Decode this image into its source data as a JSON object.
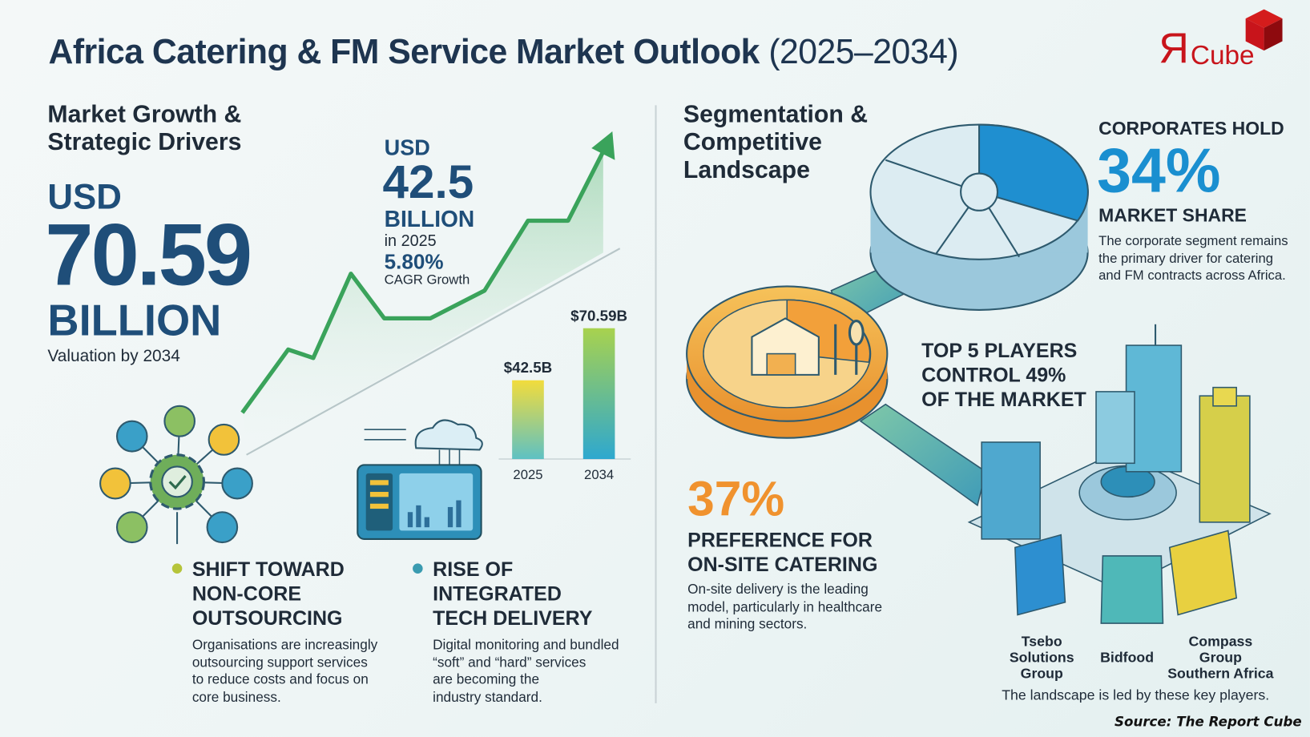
{
  "title": {
    "main": "Africa Catering & FM Service Market Outlook",
    "years": "(2025–2034)"
  },
  "logo": {
    "text_r": "Я",
    "text_cube": "Cube",
    "color": "#c8141b"
  },
  "left": {
    "heading": [
      "Market Growth &",
      "Strategic Drivers"
    ],
    "valuation": {
      "prefix": "USD",
      "value": "70.59",
      "unit": "BILLION",
      "caption": "Valuation by 2034"
    },
    "base": {
      "prefix": "USD",
      "value": "42.5",
      "unit": "BILLION",
      "year": "in 2025",
      "cagr": "5.80%",
      "cagr_label": "CAGR Growth"
    },
    "drivers": [
      {
        "title": [
          "SHIFT TOWARD",
          "NON-CORE",
          "OUTSOURCING"
        ],
        "desc": [
          "Organisations are increasingly",
          "outsourcing support services",
          "to reduce costs and focus on",
          "core business."
        ],
        "dot_color": "#b5c43a",
        "icon": "outsourcing-gear-icon"
      },
      {
        "title": [
          "RISE OF",
          "INTEGRATED",
          "TECH DELIVERY"
        ],
        "desc": [
          "Digital monitoring and bundled",
          "“soft” and “hard” services",
          "are becoming the",
          "industry standard."
        ],
        "dot_color": "#3a9bb0",
        "icon": "cloud-dashboard-icon"
      }
    ]
  },
  "chart_data": {
    "type": "bar",
    "categories": [
      "2025",
      "2034"
    ],
    "values": [
      42.5,
      70.59
    ],
    "data_labels": [
      "$42.5B",
      "$70.59B"
    ],
    "ylim": [
      0,
      80
    ]
  },
  "right": {
    "heading": [
      "Segmentation &",
      "Competitive",
      "Landscape"
    ],
    "corporates": {
      "lead": "CORPORATES HOLD",
      "value": "34%",
      "label": "MARKET SHARE",
      "desc": [
        "The corporate segment remains",
        "the primary driver for catering",
        "and FM contracts across Africa."
      ],
      "color": "#1a8fd0"
    },
    "top5": [
      "TOP 5 PLAYERS",
      "CONTROL 49%",
      "OF THE MARKET"
    ],
    "onsite": {
      "value": "37%",
      "label": [
        "PREFERENCE FOR",
        "ON-SITE CATERING"
      ],
      "desc": [
        "On-site delivery is the leading",
        "model, particularly in healthcare",
        "and mining sectors."
      ],
      "color": "#f0922e"
    },
    "players": [
      [
        "Tsebo",
        "Solutions",
        "Group"
      ],
      [
        "Bidfood"
      ],
      [
        "Compass",
        "Group",
        "Southern Africa"
      ]
    ],
    "players_caption": "The landscape is led by these key players."
  },
  "source": "Source: The Report Cube"
}
